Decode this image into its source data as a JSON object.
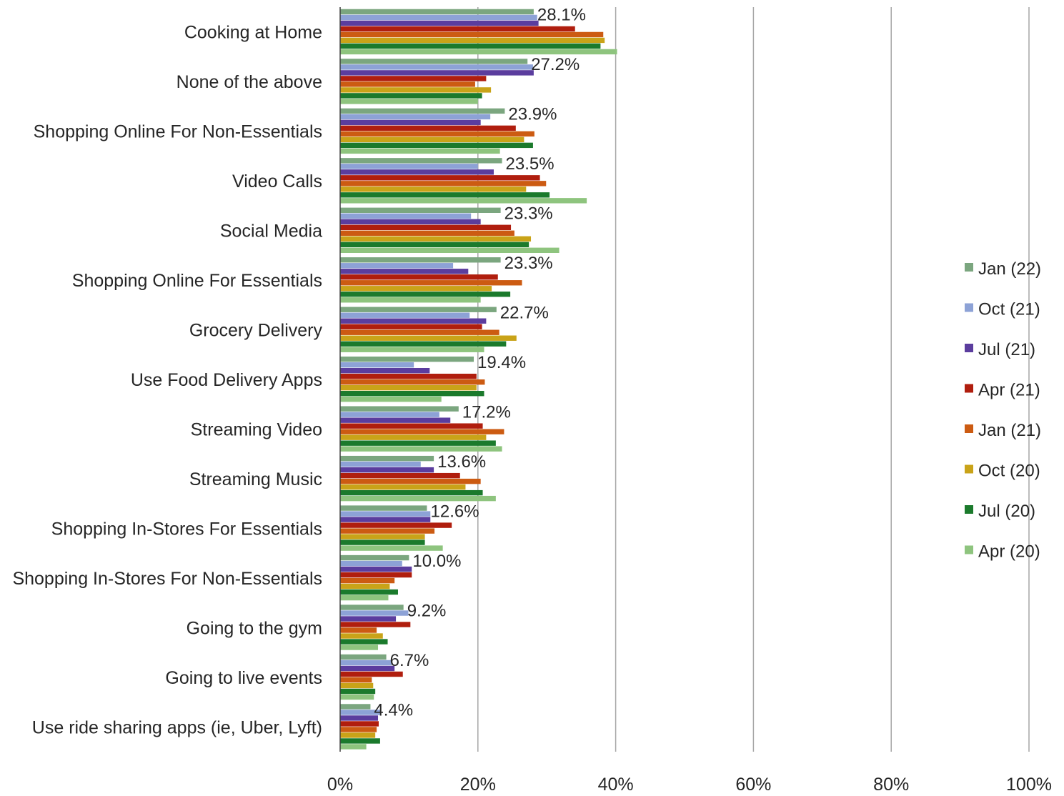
{
  "chart_data": {
    "type": "bar",
    "orientation": "horizontal",
    "categories": [
      "Cooking at Home",
      "None of the above",
      "Shopping Online For Non-Essentials",
      "Video Calls",
      "Social Media",
      "Shopping Online For Essentials",
      "Grocery Delivery",
      "Use Food Delivery Apps",
      "Streaming Video",
      "Streaming Music",
      "Shopping In-Stores For Essentials",
      "Shopping In-Stores For Non-Essentials",
      "Going to the gym",
      "Going to live events",
      "Use ride sharing apps (ie, Uber, Lyft)"
    ],
    "series": [
      {
        "name": "Jan (22)",
        "color": "#7BA67F",
        "values": [
          28.1,
          27.2,
          23.9,
          23.5,
          23.3,
          23.3,
          22.7,
          19.4,
          17.2,
          13.6,
          12.6,
          10.0,
          9.2,
          6.7,
          4.4
        ]
      },
      {
        "name": "Oct (21)",
        "color": "#8DA2D6",
        "values": [
          28.6,
          28.0,
          21.8,
          20.0,
          19.0,
          16.4,
          18.8,
          10.7,
          14.4,
          11.7,
          13.1,
          9.0,
          9.9,
          7.5,
          5.8
        ]
      },
      {
        "name": "Jul (21)",
        "color": "#5B3D9E",
        "values": [
          28.8,
          28.1,
          20.4,
          22.3,
          20.4,
          18.6,
          21.2,
          13.0,
          16.0,
          13.6,
          13.1,
          10.4,
          8.1,
          7.9,
          5.5
        ]
      },
      {
        "name": "Apr (21)",
        "color": "#B01E0E",
        "values": [
          34.1,
          21.2,
          25.5,
          29.0,
          24.8,
          22.9,
          20.6,
          19.8,
          20.7,
          17.4,
          16.2,
          10.4,
          10.2,
          9.1,
          5.6
        ]
      },
      {
        "name": "Jan (21)",
        "color": "#CC5B12",
        "values": [
          38.2,
          19.6,
          28.2,
          29.9,
          25.3,
          26.4,
          23.1,
          21.0,
          23.8,
          20.4,
          13.7,
          7.9,
          5.3,
          4.6,
          5.3
        ]
      },
      {
        "name": "Oct (20)",
        "color": "#C9A318",
        "values": [
          38.4,
          21.9,
          26.7,
          27.0,
          27.7,
          22.0,
          25.6,
          19.8,
          21.2,
          18.2,
          12.3,
          7.2,
          6.2,
          4.8,
          5.1
        ]
      },
      {
        "name": "Jul (20)",
        "color": "#1B7A2C",
        "values": [
          37.8,
          20.6,
          28.0,
          30.4,
          27.4,
          24.7,
          24.1,
          20.9,
          22.6,
          20.7,
          12.3,
          8.4,
          6.9,
          5.1,
          5.8
        ]
      },
      {
        "name": "Apr (20)",
        "color": "#8EC47E",
        "values": [
          40.2,
          20.0,
          23.2,
          35.8,
          31.8,
          20.4,
          20.9,
          14.7,
          23.5,
          22.6,
          14.9,
          7.0,
          5.5,
          4.9,
          3.8
        ]
      }
    ],
    "data_labels": [
      "28.1%",
      "27.2%",
      "23.9%",
      "23.5%",
      "23.3%",
      "23.3%",
      "22.7%",
      "19.4%",
      "17.2%",
      "13.6%",
      "12.6%",
      "10.0%",
      "9.2%",
      "6.7%",
      "4.4%"
    ],
    "x_ticks": [
      "0%",
      "20%",
      "40%",
      "60%",
      "80%",
      "100%"
    ],
    "xlim": [
      0,
      100
    ],
    "xlabel": "",
    "ylabel": "",
    "grid": "vertical",
    "legend_position": "right"
  }
}
